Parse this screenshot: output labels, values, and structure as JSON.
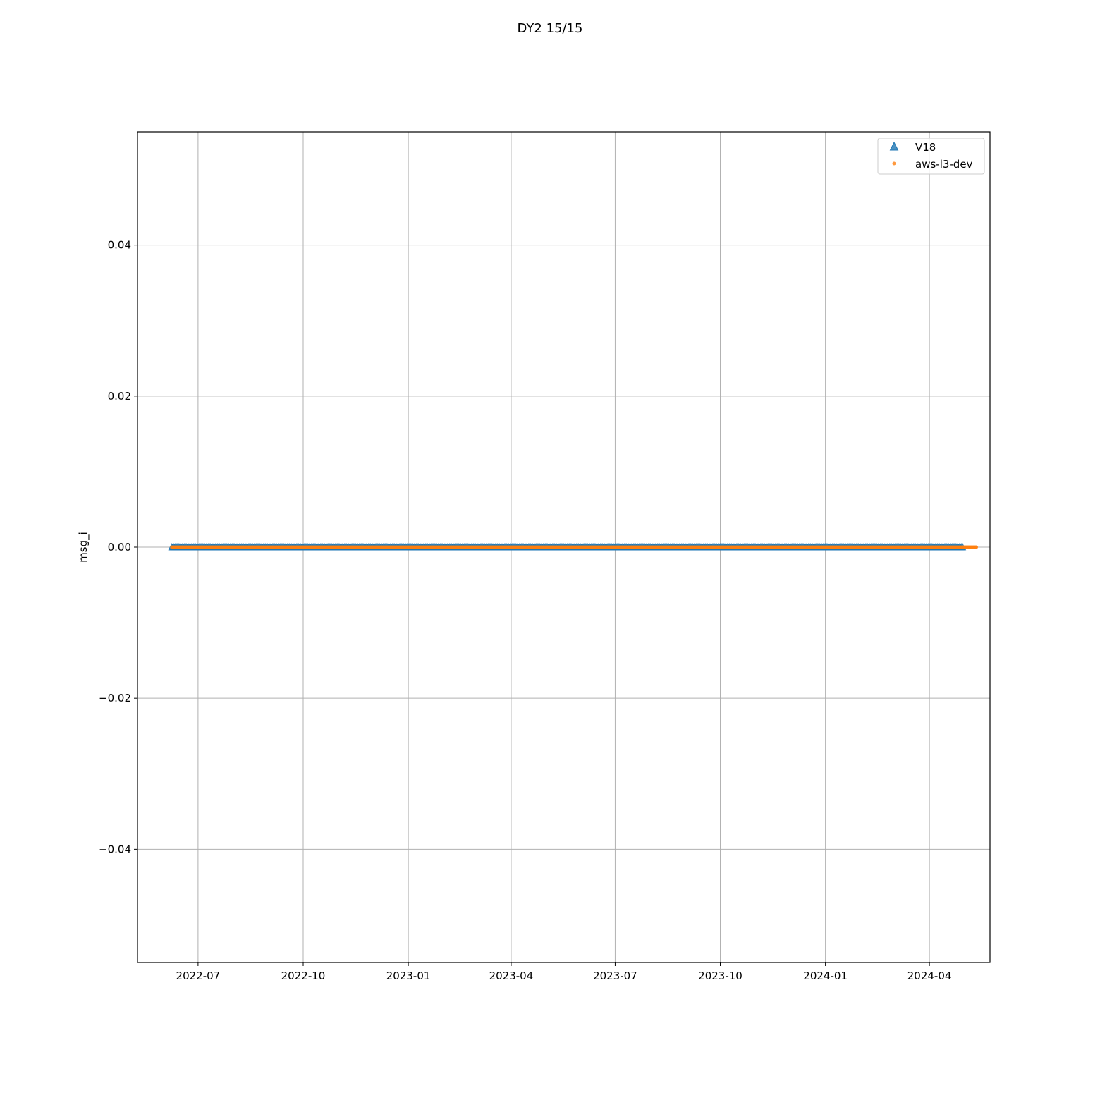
{
  "chart_data": {
    "type": "scatter",
    "title": "DY2 15/15",
    "xlabel": "",
    "ylabel": "msg_i",
    "x_axis_type": "date",
    "xlim": [
      "2022-05-09",
      "2024-05-24"
    ],
    "ylim": [
      -0.055,
      0.055
    ],
    "x_ticks": [
      "2022-07-01",
      "2022-10-01",
      "2023-01-01",
      "2023-04-01",
      "2023-07-01",
      "2023-10-01",
      "2024-01-01",
      "2024-04-01"
    ],
    "x_tick_labels": [
      "2022-07",
      "2022-10",
      "2023-01",
      "2023-04",
      "2023-07",
      "2023-10",
      "2024-01",
      "2024-04"
    ],
    "y_ticks": [
      -0.04,
      -0.02,
      0.0,
      0.02,
      0.04
    ],
    "y_tick_labels": [
      "−0.04",
      "−0.02",
      "0.00",
      "0.02",
      "0.04"
    ],
    "grid": true,
    "legend_position": "top-right",
    "series": [
      {
        "name": "V18",
        "marker": "triangle",
        "color": "#1f77b4",
        "x_start": "2022-06-08",
        "x_end": "2024-04-30",
        "x_step_days": 1,
        "y": 0.0
      },
      {
        "name": "aws-l3-dev",
        "marker": "dot",
        "color": "#ff7f0e",
        "x_start": "2022-06-08",
        "x_end": "2024-05-12",
        "x_step_days": 1,
        "y": 0.0
      }
    ]
  }
}
